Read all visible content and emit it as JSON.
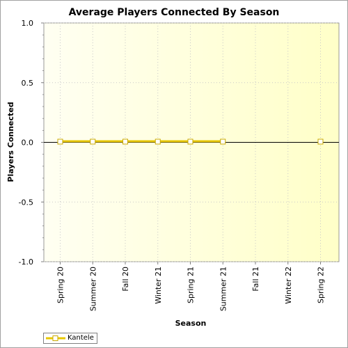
{
  "chart_data": {
    "type": "line",
    "title": "Average Players Connected By Season",
    "xlabel": "Season",
    "ylabel": "Players Connected",
    "categories": [
      "Spring 20",
      "Summer 20",
      "Fall 20",
      "Winter 21",
      "Spring 21",
      "Summer 21",
      "Fall 21",
      "Winter 22",
      "Spring 22"
    ],
    "ylim": [
      -1.0,
      1.0
    ],
    "yticks": [
      "1.0",
      "0.5",
      "0.0",
      "-0.5",
      "-1.0"
    ],
    "grid": true,
    "legend_position": "bottom-left",
    "series": [
      {
        "name": "Kantele",
        "color": "#e8c800",
        "values": [
          0,
          0,
          0,
          0,
          0,
          0,
          null,
          null,
          0
        ]
      }
    ]
  }
}
